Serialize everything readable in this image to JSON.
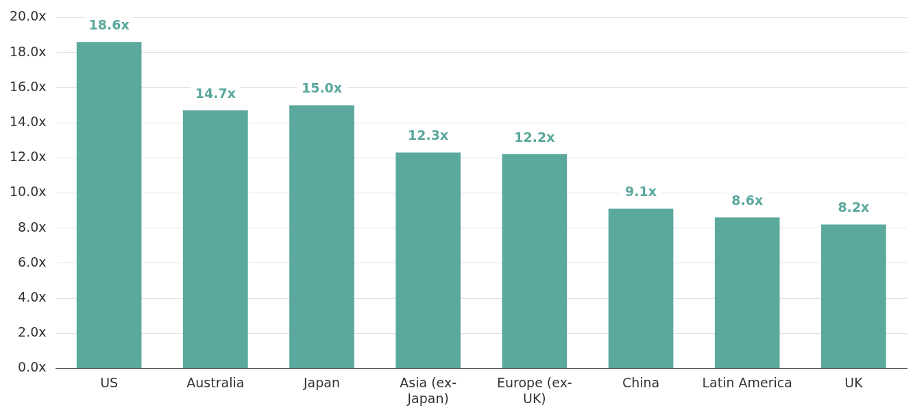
{
  "chart_data": {
    "type": "bar",
    "categories": [
      "US",
      "Australia",
      "Japan",
      "Asia (ex-Japan)",
      "Europe (ex-UK)",
      "China",
      "Latin America",
      "UK"
    ],
    "values": [
      18.6,
      14.7,
      15.0,
      12.3,
      12.2,
      9.1,
      8.6,
      8.2
    ],
    "value_labels": [
      "18.6x",
      "14.7x",
      "15.0x",
      "12.3x",
      "12.2x",
      "9.1x",
      "8.6x",
      "8.2x"
    ],
    "color": "#5ba89d",
    "ylim": [
      0,
      20
    ],
    "yticks": [
      {
        "value": 0,
        "label": "0.0x"
      },
      {
        "value": 2,
        "label": "2.0x"
      },
      {
        "value": 4,
        "label": "4.0x"
      },
      {
        "value": 6,
        "label": "6.0x"
      },
      {
        "value": 8,
        "label": "8.0x"
      },
      {
        "value": 10,
        "label": "10.0x"
      },
      {
        "value": 12,
        "label": "12.0x"
      },
      {
        "value": 14,
        "label": "14.0x"
      },
      {
        "value": 16,
        "label": "16.0x"
      },
      {
        "value": 18,
        "label": "18.0x"
      },
      {
        "value": 20,
        "label": "20.0x"
      }
    ],
    "grid": "y"
  }
}
